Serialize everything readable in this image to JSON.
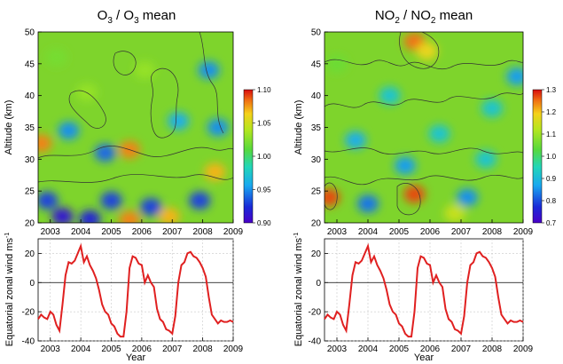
{
  "chart_data": [
    {
      "type": "heatmap",
      "title_main": "O",
      "title_sub": "3",
      "title_mid": " / O",
      "title_sub2": "3",
      "title_end": " mean",
      "ylabel": "Altitude (km)",
      "ylim": [
        20,
        50
      ],
      "yticks": [
        "20",
        "25",
        "30",
        "35",
        "40",
        "45",
        "50"
      ],
      "xlim": [
        2002.6,
        2009.0
      ],
      "xticks": [
        "2003",
        "2004",
        "2005",
        "2006",
        "2007",
        "2008",
        "2009"
      ],
      "colorbar": {
        "min": 0.9,
        "max": 1.1,
        "ticks": [
          "0.90",
          "0.95",
          "1.00",
          "1.05",
          "1.10"
        ]
      },
      "hotspots": [
        {
          "year": 2002.7,
          "alt": 32.5,
          "value": 1.08
        },
        {
          "year": 2005.6,
          "alt": 31.5,
          "value": 1.08
        },
        {
          "year": 2008.4,
          "alt": 28.0,
          "value": 1.07
        },
        {
          "year": 2005.6,
          "alt": 20.5,
          "value": 1.08
        },
        {
          "year": 2006.9,
          "alt": 21.0,
          "value": 1.07
        },
        {
          "year": 2002.9,
          "alt": 23.5,
          "value": 0.93
        },
        {
          "year": 2003.4,
          "alt": 21.0,
          "value": 0.91
        },
        {
          "year": 2004.3,
          "alt": 20.6,
          "value": 0.92
        },
        {
          "year": 2005.0,
          "alt": 23.5,
          "value": 0.93
        },
        {
          "year": 2006.3,
          "alt": 22.5,
          "value": 0.93
        },
        {
          "year": 2007.9,
          "alt": 23.5,
          "value": 0.93
        },
        {
          "year": 2003.6,
          "alt": 34.5,
          "value": 0.95
        },
        {
          "year": 2004.8,
          "alt": 31.0,
          "value": 0.94
        },
        {
          "year": 2008.2,
          "alt": 44.0,
          "value": 0.95
        },
        {
          "year": 2007.2,
          "alt": 36.0,
          "value": 0.96
        },
        {
          "year": 2008.5,
          "alt": 35.0,
          "value": 0.95
        },
        {
          "year": 2004.2,
          "alt": 40.5,
          "value": 1.03
        },
        {
          "year": 2006.1,
          "alt": 44.0,
          "value": 1.03
        },
        {
          "year": 2003.2,
          "alt": 46.0,
          "value": 1.02
        }
      ]
    },
    {
      "type": "heatmap",
      "title_main": "NO",
      "title_sub": "2",
      "title_mid": " / NO",
      "title_sub2": "2",
      "title_end": " mean",
      "ylabel": "Altitude (km)",
      "ylim": [
        20,
        50
      ],
      "yticks": [
        "20",
        "25",
        "30",
        "35",
        "40",
        "45",
        "50"
      ],
      "xlim": [
        2002.6,
        2009.0
      ],
      "xticks": [
        "2003",
        "2004",
        "2005",
        "2006",
        "2007",
        "2008",
        "2009"
      ],
      "colorbar": {
        "min": 0.7,
        "max": 1.3,
        "ticks": [
          "0.7",
          "0.8",
          "0.9",
          "1.0",
          "1.1",
          "1.2",
          "1.3"
        ]
      },
      "hotspots": [
        {
          "year": 2002.75,
          "alt": 24.0,
          "value": 1.27
        },
        {
          "year": 2005.5,
          "alt": 24.5,
          "value": 1.27
        },
        {
          "year": 2005.5,
          "alt": 48.5,
          "value": 1.25
        },
        {
          "year": 2005.9,
          "alt": 47.0,
          "value": 1.18
        },
        {
          "year": 2006.8,
          "alt": 21.5,
          "value": 1.14
        },
        {
          "year": 2007.2,
          "alt": 24.0,
          "value": 0.85
        },
        {
          "year": 2004.0,
          "alt": 23.0,
          "value": 0.83
        },
        {
          "year": 2005.2,
          "alt": 29.0,
          "value": 0.86
        },
        {
          "year": 2003.6,
          "alt": 33.0,
          "value": 0.88
        },
        {
          "year": 2008.8,
          "alt": 43.0,
          "value": 0.86
        },
        {
          "year": 2008.0,
          "alt": 38.0,
          "value": 0.92
        },
        {
          "year": 2007.8,
          "alt": 30.0,
          "value": 0.92
        },
        {
          "year": 2003.0,
          "alt": 45.0,
          "value": 1.05
        },
        {
          "year": 2004.7,
          "alt": 40.0,
          "value": 0.92
        },
        {
          "year": 2006.3,
          "alt": 34.0,
          "value": 0.92
        }
      ]
    },
    {
      "type": "line",
      "ylabel": "Equatorial zonal wind ms",
      "ylabel_sup": "-1",
      "xlabel": "Year",
      "ylim": [
        -40,
        30
      ],
      "yticks": [
        "-40",
        "-20",
        "0",
        "20"
      ],
      "xlim": [
        2002.6,
        2009.0
      ],
      "xticks": [
        "2003",
        "2004",
        "2005",
        "2006",
        "2007",
        "2008",
        "2009"
      ],
      "series": [
        {
          "color": "#e02020",
          "x": [
            2002.6,
            2002.7,
            2002.8,
            2002.9,
            2003.0,
            2003.1,
            2003.2,
            2003.3,
            2003.4,
            2003.5,
            2003.6,
            2003.7,
            2003.8,
            2003.9,
            2004.0,
            2004.1,
            2004.2,
            2004.3,
            2004.4,
            2004.5,
            2004.6,
            2004.7,
            2004.8,
            2004.9,
            2005.0,
            2005.1,
            2005.2,
            2005.3,
            2005.4,
            2005.5,
            2005.6,
            2005.7,
            2005.8,
            2005.9,
            2006.0,
            2006.1,
            2006.2,
            2006.3,
            2006.4,
            2006.5,
            2006.6,
            2006.7,
            2006.8,
            2006.9,
            2007.0,
            2007.1,
            2007.2,
            2007.3,
            2007.4,
            2007.5,
            2007.6,
            2007.7,
            2007.8,
            2007.9,
            2008.0,
            2008.1,
            2008.2,
            2008.3,
            2008.4,
            2008.5,
            2008.6,
            2008.7,
            2008.8,
            2008.9,
            2009.0
          ],
          "y": [
            -25,
            -22,
            -24,
            -25,
            -20,
            -22,
            -29,
            -33,
            -15,
            5,
            14,
            13,
            15,
            20,
            25,
            14,
            18,
            12,
            8,
            3,
            -5,
            -15,
            -20,
            -22,
            -28,
            -30,
            -35,
            -37,
            -37,
            -20,
            10,
            18,
            17,
            13,
            12,
            0,
            5,
            0,
            -3,
            -18,
            -25,
            -27,
            -32,
            -33,
            -35,
            -23,
            0,
            12,
            14,
            20,
            21,
            18,
            17,
            14,
            10,
            4,
            -10,
            -22,
            -25,
            -28,
            -26,
            -27,
            -27,
            -26,
            -27
          ]
        }
      ]
    },
    {
      "type": "line",
      "ylabel": "Equatorial zonal wind ms",
      "ylabel_sup": "-1",
      "xlabel": "Year",
      "ylim": [
        -40,
        30
      ],
      "yticks": [
        "-40",
        "-20",
        "0",
        "20"
      ],
      "xlim": [
        2002.6,
        2009.0
      ],
      "xticks": [
        "2003",
        "2004",
        "2005",
        "2006",
        "2007",
        "2008",
        "2009"
      ],
      "series": [
        {
          "color": "#e02020",
          "x": [
            2002.6,
            2002.7,
            2002.8,
            2002.9,
            2003.0,
            2003.1,
            2003.2,
            2003.3,
            2003.4,
            2003.5,
            2003.6,
            2003.7,
            2003.8,
            2003.9,
            2004.0,
            2004.1,
            2004.2,
            2004.3,
            2004.4,
            2004.5,
            2004.6,
            2004.7,
            2004.8,
            2004.9,
            2005.0,
            2005.1,
            2005.2,
            2005.3,
            2005.4,
            2005.5,
            2005.6,
            2005.7,
            2005.8,
            2005.9,
            2006.0,
            2006.1,
            2006.2,
            2006.3,
            2006.4,
            2006.5,
            2006.6,
            2006.7,
            2006.8,
            2006.9,
            2007.0,
            2007.1,
            2007.2,
            2007.3,
            2007.4,
            2007.5,
            2007.6,
            2007.7,
            2007.8,
            2007.9,
            2008.0,
            2008.1,
            2008.2,
            2008.3,
            2008.4,
            2008.5,
            2008.6,
            2008.7,
            2008.8,
            2008.9,
            2009.0
          ],
          "y": [
            -25,
            -22,
            -24,
            -25,
            -20,
            -22,
            -29,
            -33,
            -15,
            5,
            14,
            13,
            15,
            20,
            25,
            14,
            18,
            12,
            8,
            3,
            -5,
            -15,
            -20,
            -22,
            -28,
            -30,
            -35,
            -37,
            -37,
            -20,
            10,
            18,
            17,
            13,
            12,
            0,
            5,
            0,
            -3,
            -18,
            -25,
            -27,
            -32,
            -33,
            -35,
            -23,
            0,
            12,
            14,
            20,
            21,
            18,
            17,
            14,
            10,
            4,
            -10,
            -22,
            -25,
            -28,
            -26,
            -27,
            -27,
            -26,
            -27
          ]
        }
      ]
    }
  ]
}
